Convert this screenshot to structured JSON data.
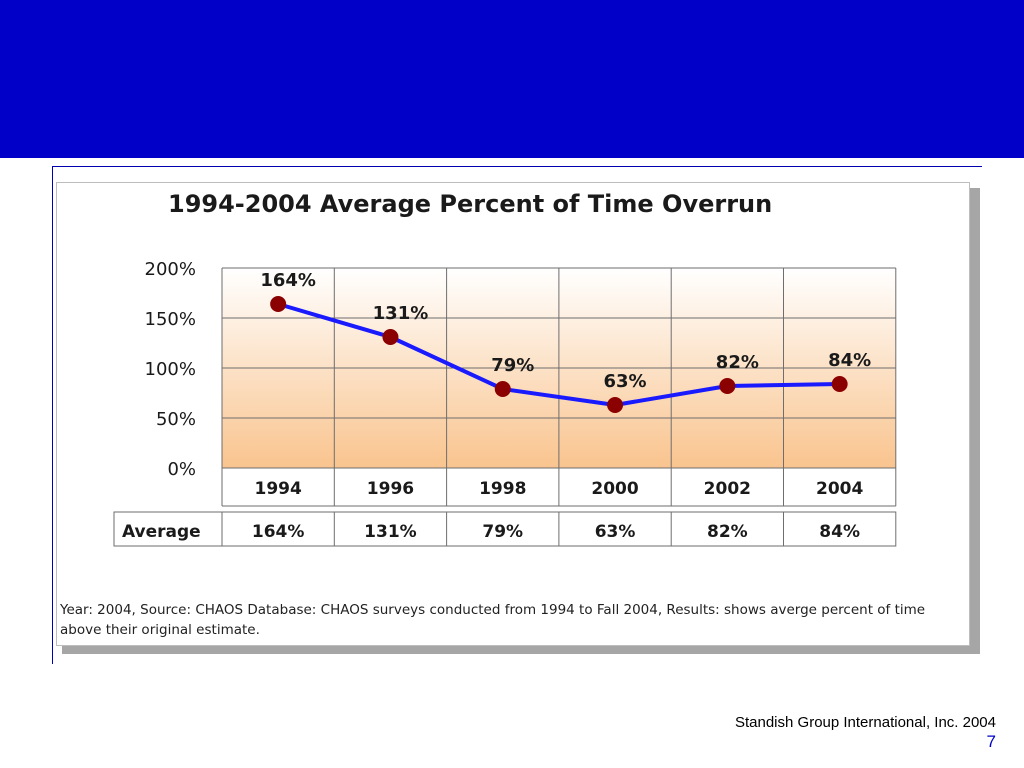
{
  "slide": {
    "source_credit": "Standish Group International, Inc. 2004",
    "page_number": "7",
    "banner_color": "#0000c8"
  },
  "chart_data": {
    "type": "line",
    "title": "1994-2004 Average Percent of  Time Overrun",
    "categories": [
      "1994",
      "1996",
      "1998",
      "2000",
      "2002",
      "2004"
    ],
    "series": [
      {
        "values": [
          164,
          131,
          79,
          63,
          82,
          84
        ],
        "color": "#1a1aff",
        "marker_color": "#8b0000"
      }
    ],
    "data_labels": [
      "164%",
      "131%",
      "79%",
      "63%",
      "82%",
      "84%"
    ],
    "ylim": [
      0,
      200
    ],
    "yticks": [
      "0%",
      "50%",
      "100%",
      "150%",
      "200%"
    ],
    "grid": true,
    "table": {
      "row_header": "Average",
      "values": [
        "164%",
        "131%",
        "79%",
        "63%",
        "82%",
        "84%"
      ]
    },
    "footnote": "Year: 2004, Source: CHAOS Database: CHAOS surveys conducted from 1994 to Fall 2004, Results: shows averge percent of time above their original estimate."
  }
}
